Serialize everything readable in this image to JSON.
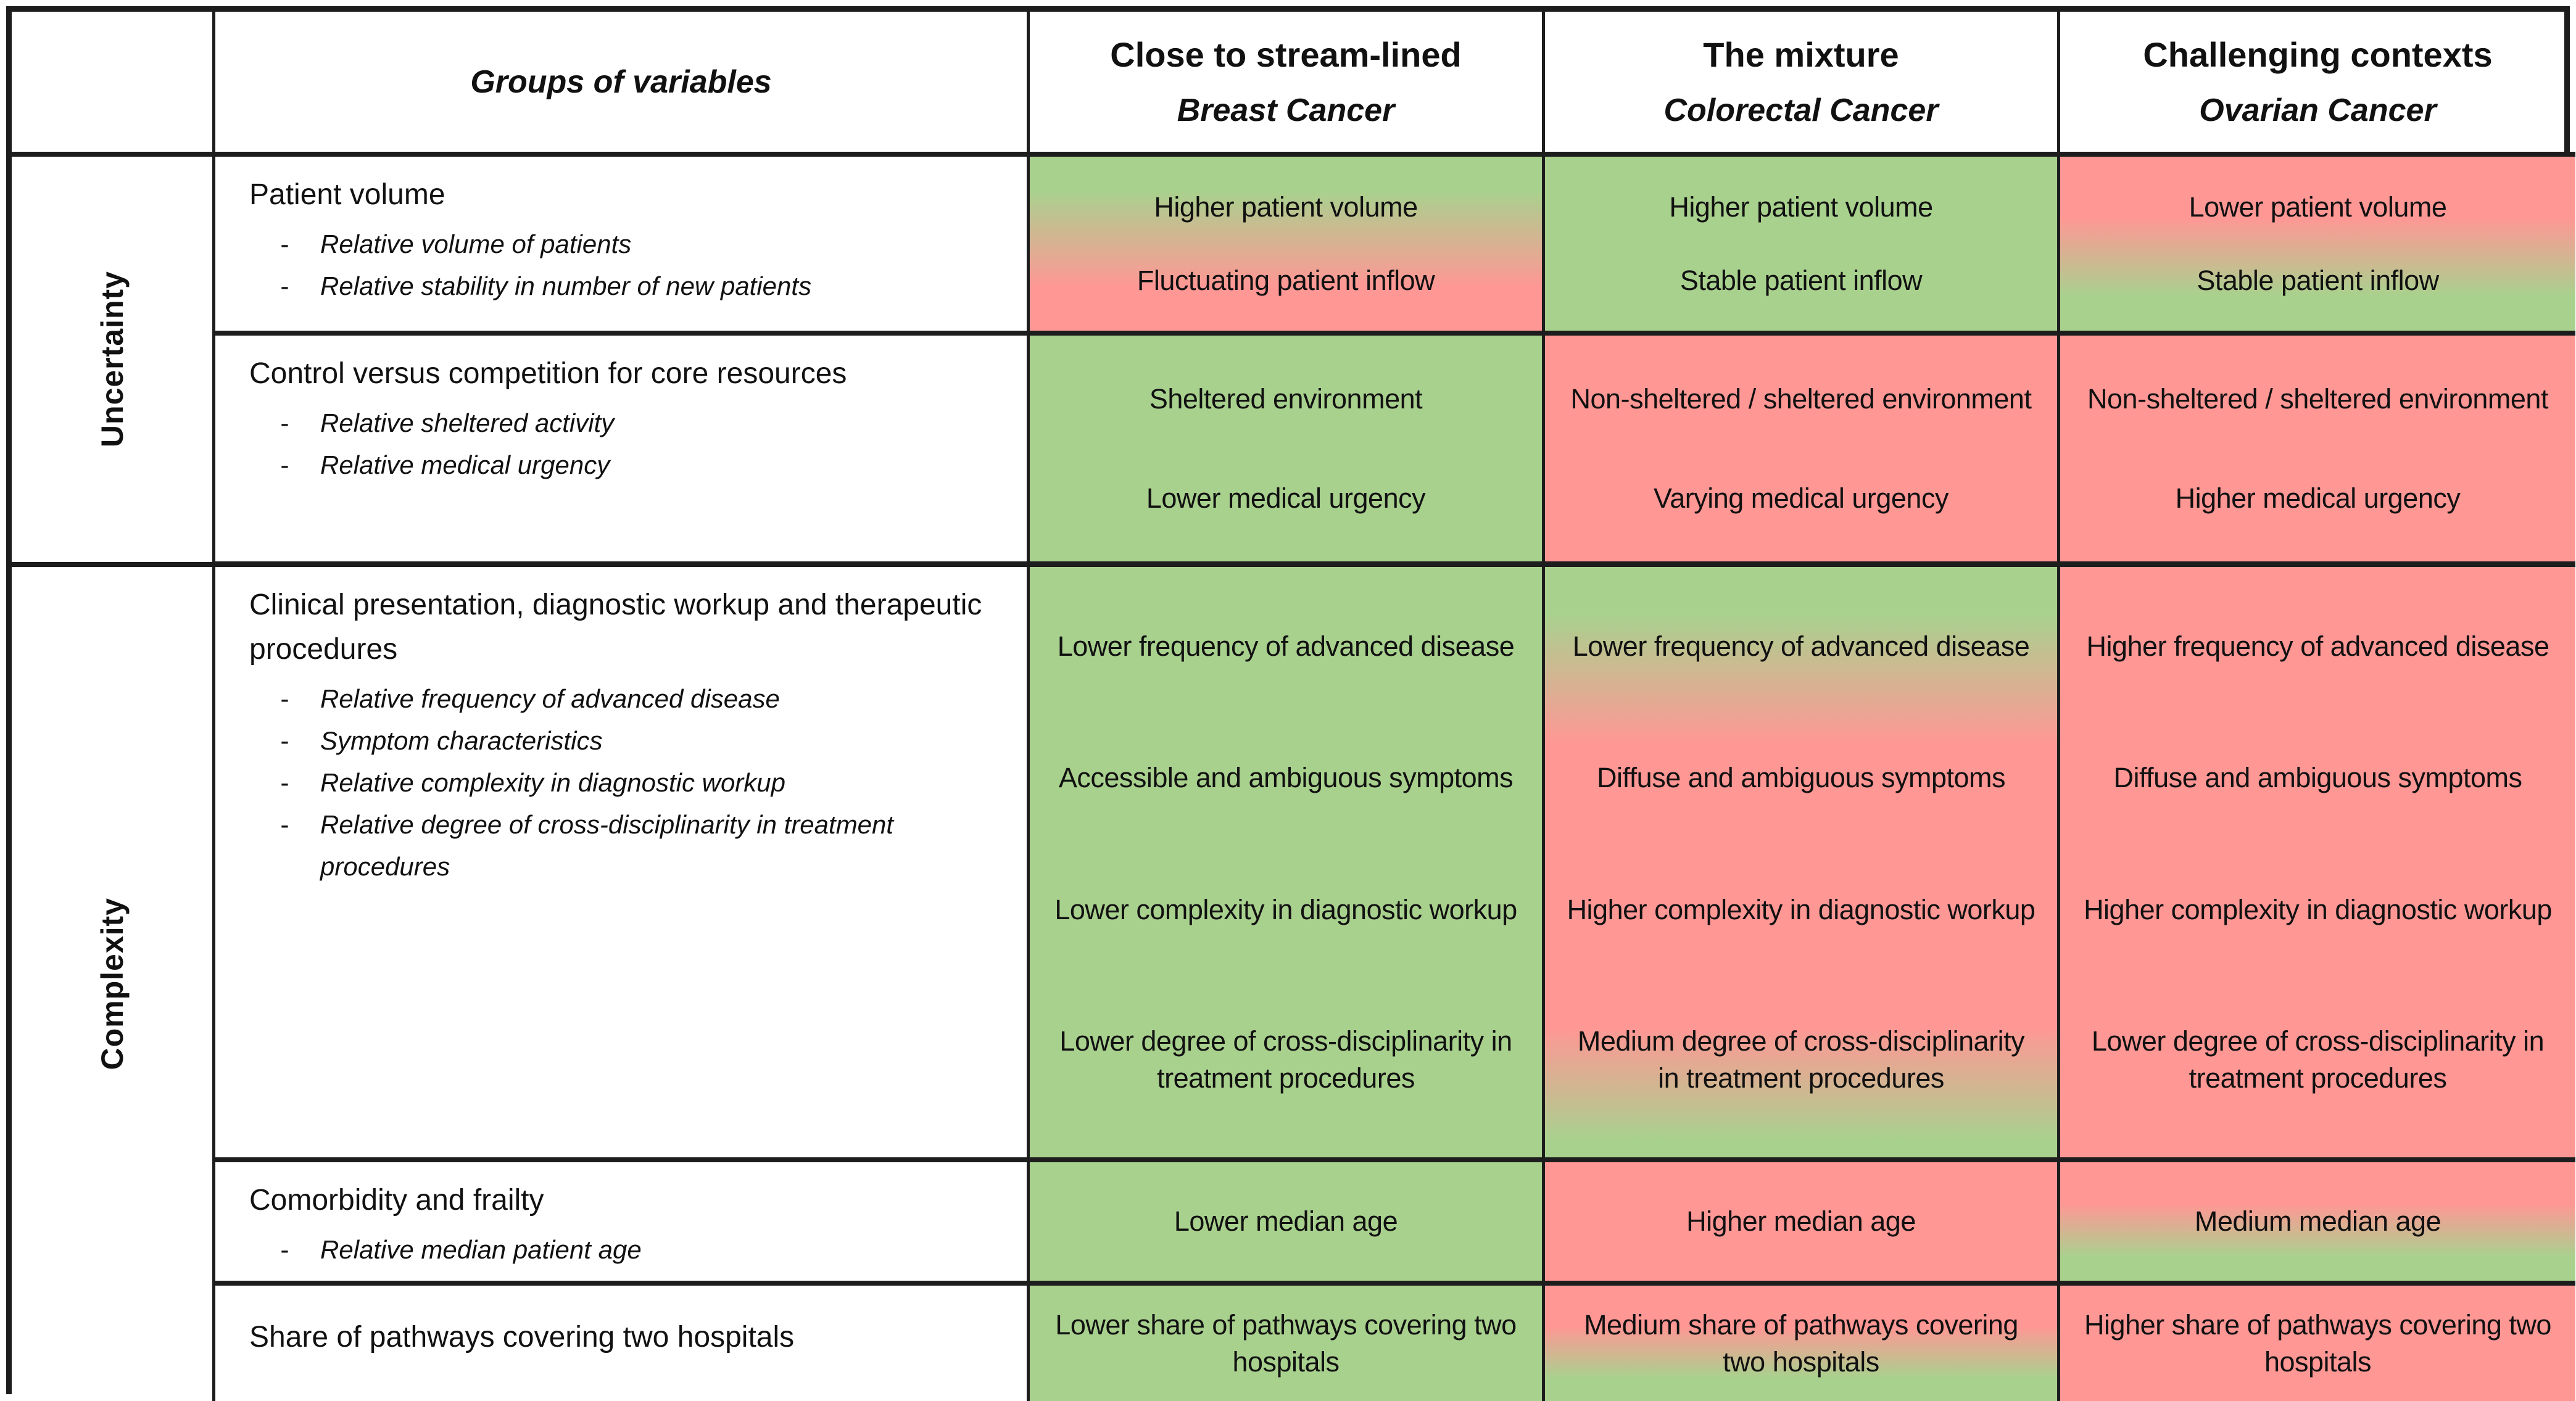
{
  "header": {
    "groups_label": "Groups of variables",
    "col1_title": "Close to stream-lined",
    "col1_sub": "Breast Cancer",
    "col2_title": "The mixture",
    "col2_sub": "Colorectal Cancer",
    "col3_title": "Challenging contexts",
    "col3_sub": "Ovarian Cancer"
  },
  "side": {
    "uncertainty": "Uncertainty",
    "complexity": "Complexity"
  },
  "rows": {
    "patient_volume": {
      "title": "Patient volume",
      "bullets": [
        "Relative volume of patients",
        "Relative stability in number of new patients"
      ],
      "breast": [
        "Higher patient volume",
        "Fluctuating patient inflow"
      ],
      "colorectal": [
        "Higher patient volume",
        "Stable patient inflow"
      ],
      "ovarian": [
        "Lower patient volume",
        "Stable patient inflow"
      ]
    },
    "control_resources": {
      "title": "Control versus competition for core resources",
      "bullets": [
        "Relative sheltered activity",
        "Relative medical urgency"
      ],
      "breast": [
        "Sheltered environment",
        "Lower medical urgency"
      ],
      "colorectal": [
        "Non-sheltered / sheltered environment",
        "Varying medical urgency"
      ],
      "ovarian": [
        "Non-sheltered / sheltered environment",
        "Higher medical urgency"
      ]
    },
    "clinical": {
      "title": "Clinical presentation, diagnostic workup and therapeutic procedures",
      "bullets": [
        "Relative frequency of advanced disease",
        "Symptom characteristics",
        "Relative complexity in diagnostic workup",
        "Relative degree of cross-disciplinarity in treatment procedures"
      ],
      "breast": [
        "Lower frequency of advanced disease",
        "Accessible and ambiguous symptoms",
        "Lower complexity in diagnostic workup",
        "Lower degree of cross-disciplinarity in treatment procedures"
      ],
      "colorectal": [
        "Lower frequency of advanced disease",
        "Diffuse and ambiguous symptoms",
        "Higher complexity in diagnostic workup",
        "Medium degree of cross-disciplinarity in treatment procedures"
      ],
      "ovarian": [
        "Higher frequency of advanced disease",
        "Diffuse and ambiguous symptoms",
        "Higher complexity in diagnostic workup",
        "Lower degree of cross-disciplinarity in treatment procedures"
      ]
    },
    "comorbidity": {
      "title": "Comorbidity and frailty",
      "bullets": [
        "Relative median patient age"
      ],
      "breast": [
        "Lower median age"
      ],
      "colorectal": [
        "Higher median age"
      ],
      "ovarian": [
        "Medium median age"
      ]
    },
    "pathways": {
      "title": "Share of pathways covering two hospitals",
      "bullets": [],
      "breast": [
        "Lower share of pathways covering two hospitals"
      ],
      "colorectal": [
        "Medium share of pathways covering two hospitals"
      ],
      "ovarian": [
        "Higher share of pathways covering two hospitals"
      ]
    }
  },
  "palette": {
    "green": "#a9d18e",
    "red": "#ff9795"
  },
  "cell_backgrounds": {
    "green": "#a9d18e",
    "red": "#ff9795",
    "green_to_red": "linear-gradient(180deg,#a9d18e 20%,#ff9795 75%)",
    "red_to_green": "linear-gradient(180deg,#ff9795 35%,#a9d18e 80%)",
    "green_red_green": "linear-gradient(180deg,#a9d18e 8%,#ff9795 30%,#ff9795 78%,#a9d18e 97%)"
  }
}
